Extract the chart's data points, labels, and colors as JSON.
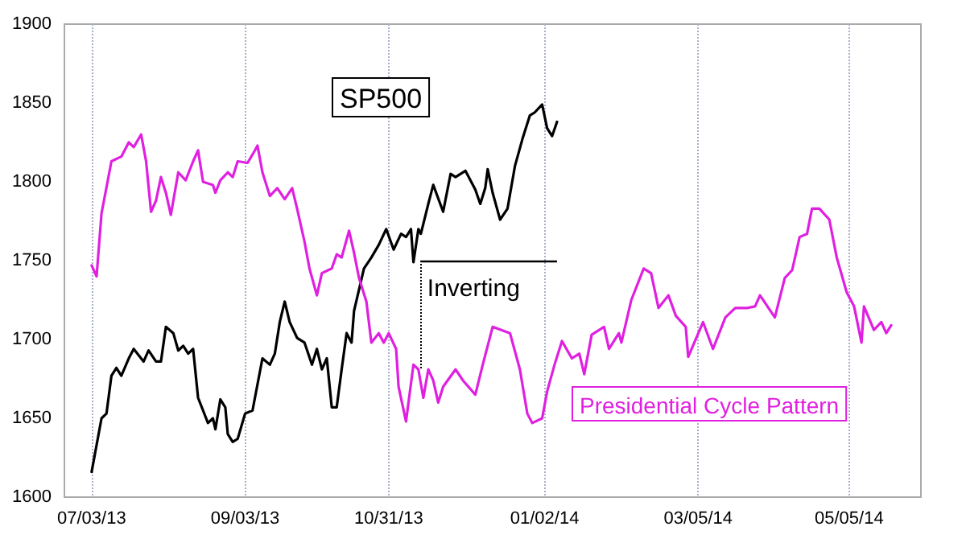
{
  "chart_data": {
    "type": "line",
    "xlim": [
      "2013-06-22",
      "2014-06-03"
    ],
    "xticks": [
      {
        "value": "2013-07-03",
        "label": "07/03/13"
      },
      {
        "value": "2013-09-03",
        "label": "09/03/13"
      },
      {
        "value": "2013-10-31",
        "label": "10/31/13"
      },
      {
        "value": "2014-01-02",
        "label": "01/02/14"
      },
      {
        "value": "2014-03-05",
        "label": "03/05/14"
      },
      {
        "value": "2014-05-05",
        "label": "05/05/14"
      }
    ],
    "ylim": [
      1600,
      1900
    ],
    "yticks": [
      1600,
      1650,
      1700,
      1750,
      1800,
      1850,
      1900
    ],
    "grid": "x",
    "annotations": [
      {
        "text": "Inverting",
        "x": "2013-11-13",
        "y": 1750
      }
    ],
    "series": [
      {
        "name": "SP500",
        "color": "#000000",
        "x": [
          "2013-07-03",
          "2013-07-05",
          "2013-07-07",
          "2013-07-09",
          "2013-07-11",
          "2013-07-13",
          "2013-07-15",
          "2013-07-18",
          "2013-07-20",
          "2013-07-24",
          "2013-07-26",
          "2013-07-29",
          "2013-07-31",
          "2013-08-02",
          "2013-08-05",
          "2013-08-07",
          "2013-08-09",
          "2013-08-11",
          "2013-08-13",
          "2013-08-15",
          "2013-08-19",
          "2013-08-21",
          "2013-08-22",
          "2013-08-24",
          "2013-08-26",
          "2013-08-27",
          "2013-08-29",
          "2013-08-31",
          "2013-09-03",
          "2013-09-06",
          "2013-09-10",
          "2013-09-13",
          "2013-09-15",
          "2013-09-17",
          "2013-09-19",
          "2013-09-21",
          "2013-09-24",
          "2013-09-27",
          "2013-09-30",
          "2013-10-02",
          "2013-10-04",
          "2013-10-06",
          "2013-10-08",
          "2013-10-10",
          "2013-10-12",
          "2013-10-14",
          "2013-10-16",
          "2013-10-17",
          "2013-10-21",
          "2013-10-24",
          "2013-10-27",
          "2013-10-30",
          "2013-11-02",
          "2013-11-05",
          "2013-11-07",
          "2013-11-09",
          "2013-11-10",
          "2013-11-12",
          "2013-11-13",
          "2013-11-16",
          "2013-11-18",
          "2013-11-22",
          "2013-11-25",
          "2013-11-27",
          "2013-12-01",
          "2013-12-05",
          "2013-12-07",
          "2013-12-09",
          "2013-12-10",
          "2013-12-12",
          "2013-12-15",
          "2013-12-18",
          "2013-12-21",
          "2013-12-24",
          "2013-12-27",
          "2013-12-29",
          "2014-01-01",
          "2014-01-03",
          "2014-01-05",
          "2014-01-07"
        ],
        "values": [
          1616,
          1633,
          1650,
          1653,
          1677,
          1682,
          1677,
          1688,
          1694,
          1686,
          1693,
          1686,
          1686,
          1708,
          1704,
          1693,
          1696,
          1691,
          1694,
          1663,
          1647,
          1650,
          1643,
          1662,
          1657,
          1640,
          1635,
          1637,
          1653,
          1655,
          1688,
          1684,
          1691,
          1711,
          1724,
          1711,
          1701,
          1698,
          1684,
          1694,
          1681,
          1688,
          1657,
          1657,
          1681,
          1704,
          1698,
          1718,
          1745,
          1752,
          1760,
          1770,
          1757,
          1767,
          1765,
          1770,
          1749,
          1770,
          1767,
          1786,
          1798,
          1781,
          1805,
          1803,
          1807,
          1795,
          1786,
          1796,
          1808,
          1793,
          1776,
          1783,
          1810,
          1827,
          1842,
          1844,
          1849,
          1834,
          1829,
          1838
        ]
      },
      {
        "name": "Presidential Cycle Pattern",
        "color": "#e020e0",
        "x": [
          "2013-07-03",
          "2013-07-05",
          "2013-07-07",
          "2013-07-11",
          "2013-07-15",
          "2013-07-18",
          "2013-07-20",
          "2013-07-23",
          "2013-07-25",
          "2013-07-27",
          "2013-07-29",
          "2013-07-31",
          "2013-08-02",
          "2013-08-04",
          "2013-08-07",
          "2013-08-10",
          "2013-08-13",
          "2013-08-15",
          "2013-08-17",
          "2013-08-21",
          "2013-08-22",
          "2013-08-24",
          "2013-08-27",
          "2013-08-29",
          "2013-08-31",
          "2013-09-04",
          "2013-09-07",
          "2013-09-08",
          "2013-09-10",
          "2013-09-13",
          "2013-09-16",
          "2013-09-19",
          "2013-09-22",
          "2013-09-24",
          "2013-09-27",
          "2013-09-29",
          "2013-10-02",
          "2013-10-04",
          "2013-10-08",
          "2013-10-10",
          "2013-10-12",
          "2013-10-15",
          "2013-10-17",
          "2013-10-19",
          "2013-10-22",
          "2013-10-24",
          "2013-10-27",
          "2013-10-29",
          "2013-10-31",
          "2013-11-03",
          "2013-11-04",
          "2013-11-07",
          "2013-11-10",
          "2013-11-12",
          "2013-11-14",
          "2013-11-16",
          "2013-11-18",
          "2013-11-20",
          "2013-11-22",
          "2013-11-27",
          "2013-11-30",
          "2013-12-05",
          "2013-12-08",
          "2013-12-12",
          "2013-12-19",
          "2013-12-23",
          "2013-12-26",
          "2013-12-28",
          "2014-01-01",
          "2014-01-03",
          "2014-01-06",
          "2014-01-09",
          "2014-01-13",
          "2014-01-16",
          "2014-01-18",
          "2014-01-21",
          "2014-01-26",
          "2014-01-28",
          "2014-02-01",
          "2014-02-02",
          "2014-02-06",
          "2014-02-11",
          "2014-02-14",
          "2014-02-17",
          "2014-02-21",
          "2014-02-24",
          "2014-02-28",
          "2014-03-01",
          "2014-03-07",
          "2014-03-11",
          "2014-03-16",
          "2014-03-20",
          "2014-03-25",
          "2014-03-28",
          "2014-03-30",
          "2014-04-02",
          "2014-04-05",
          "2014-04-09",
          "2014-04-12",
          "2014-04-15",
          "2014-04-18",
          "2014-04-20",
          "2014-04-23",
          "2014-04-27",
          "2014-04-30",
          "2014-05-04",
          "2014-05-07",
          "2014-05-10",
          "2014-05-11",
          "2014-05-15",
          "2014-05-18",
          "2014-05-20",
          "2014-05-22"
        ],
        "values": [
          1747,
          1740,
          1780,
          1813,
          1816,
          1825,
          1822,
          1830,
          1813,
          1781,
          1788,
          1803,
          1793,
          1779,
          1806,
          1801,
          1813,
          1820,
          1800,
          1798,
          1793,
          1801,
          1806,
          1803,
          1813,
          1812,
          1820,
          1823,
          1806,
          1791,
          1796,
          1789,
          1796,
          1783,
          1762,
          1745,
          1728,
          1742,
          1745,
          1754,
          1752,
          1769,
          1755,
          1739,
          1724,
          1698,
          1704,
          1698,
          1704,
          1694,
          1670,
          1648,
          1684,
          1681,
          1663,
          1681,
          1674,
          1660,
          1670,
          1681,
          1674,
          1665,
          1684,
          1708,
          1704,
          1681,
          1653,
          1647,
          1650,
          1667,
          1684,
          1699,
          1688,
          1691,
          1678,
          1703,
          1708,
          1694,
          1704,
          1698,
          1725,
          1745,
          1742,
          1720,
          1728,
          1715,
          1708,
          1689,
          1711,
          1694,
          1714,
          1720,
          1720,
          1721,
          1728,
          1721,
          1714,
          1739,
          1744,
          1765,
          1767,
          1783,
          1783,
          1776,
          1752,
          1730,
          1721,
          1698,
          1721,
          1706,
          1711,
          1704,
          1709
        ]
      }
    ]
  }
}
